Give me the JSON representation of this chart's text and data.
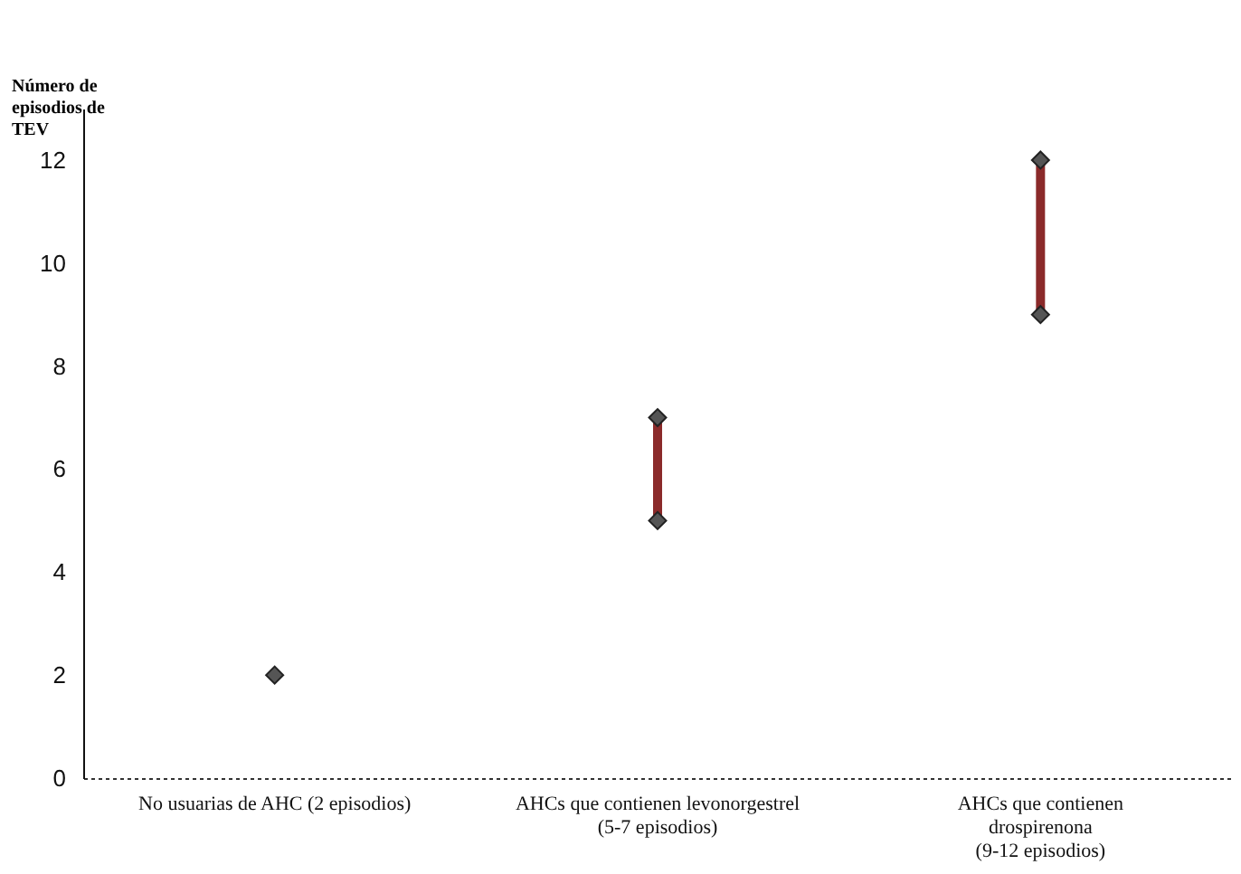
{
  "chart_data": {
    "type": "scatter",
    "ylabel": "Número de episodios de TEV",
    "categories": [
      "No usuarias de AHC (2 episodios)",
      "AHCs que contienen levonorgestrel\n(5-7 episodios)",
      "AHCs que contienen\ndrospirenona\n(9-12 episodios)"
    ],
    "series": [
      {
        "type": "bar",
        "color": "#8b2a2a",
        "base": [
          null,
          5,
          9
        ],
        "values": [
          null,
          2,
          3
        ]
      },
      {
        "color": "#555555",
        "values": [
          2,
          5,
          9
        ]
      },
      {
        "color": "#555555",
        "values": [
          null,
          7,
          12
        ]
      }
    ],
    "ylim": [
      0,
      13
    ],
    "yticks": [
      0,
      2,
      4,
      6,
      8,
      10,
      12
    ],
    "grid": false,
    "marker": "diamond"
  }
}
